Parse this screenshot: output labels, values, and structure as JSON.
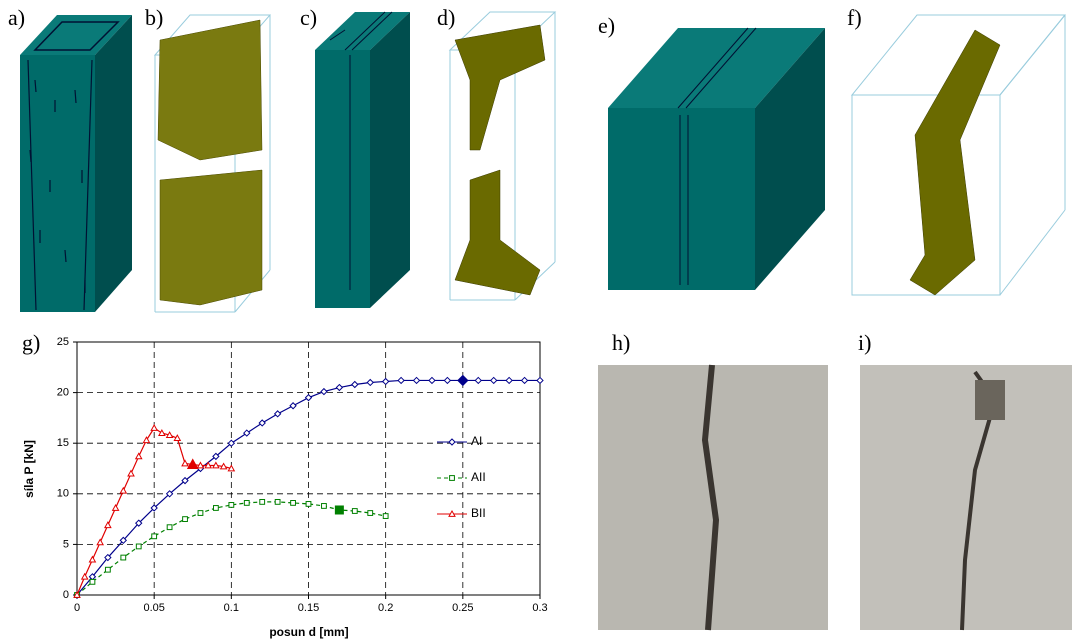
{
  "panels": [
    "a)",
    "b)",
    "c)",
    "d)",
    "e)",
    "f)",
    "g)",
    "h)",
    "i)"
  ],
  "chart_data": {
    "type": "line",
    "xlabel": "posun d [mm]",
    "ylabel": "síla P [kN]",
    "xlim": [
      0,
      0.3
    ],
    "xticks": [
      0,
      0.05,
      0.1,
      0.15,
      0.2,
      0.25,
      0.3
    ],
    "ylim": [
      0,
      25
    ],
    "yticks": [
      0,
      5,
      10,
      15,
      20,
      25
    ],
    "grid": true,
    "legend": "right",
    "series": [
      {
        "name": "AI",
        "color": "#00008b",
        "marker": "diamond",
        "dashed": false,
        "highlight_index": 25,
        "x": [
          0,
          0.01,
          0.02,
          0.03,
          0.04,
          0.05,
          0.06,
          0.07,
          0.08,
          0.09,
          0.1,
          0.11,
          0.12,
          0.13,
          0.14,
          0.15,
          0.16,
          0.17,
          0.18,
          0.19,
          0.2,
          0.21,
          0.22,
          0.23,
          0.24,
          0.25,
          0.26,
          0.27,
          0.28,
          0.29,
          0.3
        ],
        "values": [
          0,
          1.8,
          3.7,
          5.4,
          7.1,
          8.6,
          10.0,
          11.3,
          12.5,
          13.7,
          15.0,
          16.0,
          17.0,
          17.9,
          18.7,
          19.5,
          20.1,
          20.5,
          20.8,
          21.0,
          21.1,
          21.2,
          21.2,
          21.2,
          21.2,
          21.2,
          21.2,
          21.2,
          21.2,
          21.2,
          21.2
        ]
      },
      {
        "name": "AII",
        "color": "#008000",
        "marker": "square",
        "dashed": true,
        "highlight_index": 17,
        "x": [
          0,
          0.01,
          0.02,
          0.03,
          0.04,
          0.05,
          0.06,
          0.07,
          0.08,
          0.09,
          0.1,
          0.11,
          0.12,
          0.13,
          0.14,
          0.15,
          0.16,
          0.17,
          0.18,
          0.19,
          0.2
        ],
        "values": [
          0,
          1.3,
          2.5,
          3.7,
          4.8,
          5.8,
          6.7,
          7.5,
          8.1,
          8.6,
          8.9,
          9.1,
          9.2,
          9.2,
          9.1,
          9.0,
          8.8,
          8.4,
          8.3,
          8.1,
          7.8
        ]
      },
      {
        "name": "BII",
        "color": "#e00000",
        "marker": "triangle",
        "dashed": false,
        "highlight_index": 15,
        "x": [
          0,
          0.005,
          0.01,
          0.015,
          0.02,
          0.025,
          0.03,
          0.035,
          0.04,
          0.045,
          0.05,
          0.055,
          0.06,
          0.065,
          0.07,
          0.075,
          0.08,
          0.085,
          0.09,
          0.095,
          0.1
        ],
        "values": [
          0,
          1.8,
          3.5,
          5.2,
          6.9,
          8.6,
          10.3,
          12.0,
          13.7,
          15.3,
          16.5,
          16.0,
          15.8,
          15.5,
          13.0,
          12.9,
          12.8,
          12.8,
          12.8,
          12.7,
          12.5
        ]
      }
    ]
  }
}
